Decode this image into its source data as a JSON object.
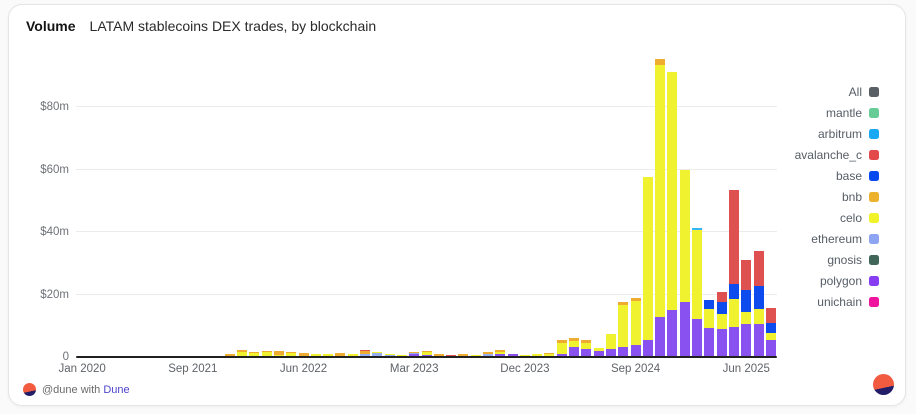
{
  "header": {
    "title": "Volume",
    "subtitle": "LATAM stablecoins DEX trades, by blockchain"
  },
  "footer": {
    "attribution_prefix": "@dune with",
    "brand": "Dune"
  },
  "legend": {
    "position": "right",
    "items": [
      {
        "label": "All",
        "color": "#5a5f66"
      },
      {
        "label": "mantle",
        "color": "#67cb98"
      },
      {
        "label": "arbitrum",
        "color": "#19a8f1"
      },
      {
        "label": "avalanche_c",
        "color": "#e3494b"
      },
      {
        "label": "base",
        "color": "#0648f0"
      },
      {
        "label": "bnb",
        "color": "#ecb22d"
      },
      {
        "label": "celo",
        "color": "#f2f229"
      },
      {
        "label": "ethereum",
        "color": "#8ca4f1"
      },
      {
        "label": "gnosis",
        "color": "#40665a"
      },
      {
        "label": "polygon",
        "color": "#873ef2"
      },
      {
        "label": "unichain",
        "color": "#ee149e"
      }
    ]
  },
  "chart_data": {
    "type": "bar",
    "stacked": true,
    "title": "Volume — LATAM stablecoins DEX trades, by blockchain",
    "unit": "USD millions",
    "ylim": [
      0,
      96
    ],
    "grid": "horizontal-only",
    "legend_position": "right",
    "yticks": [
      {
        "label": "$80m",
        "value": 80
      },
      {
        "label": "$60m",
        "value": 60
      },
      {
        "label": "$40m",
        "value": 40
      },
      {
        "label": "$20m",
        "value": 20
      },
      {
        "label": "0",
        "value": 0
      }
    ],
    "total_slots": 57,
    "xticks": [
      {
        "label": "Jan 2020",
        "slot": 0
      },
      {
        "label": "Sep 2021",
        "slot": 9
      },
      {
        "label": "Jun 2022",
        "slot": 18
      },
      {
        "label": "Mar 2023",
        "slot": 27
      },
      {
        "label": "Dec 2023",
        "slot": 36
      },
      {
        "label": "Sep 2024",
        "slot": 45
      },
      {
        "label": "Jun 2025",
        "slot": 54
      }
    ],
    "stack_order": [
      "polygon",
      "gnosis",
      "ethereum",
      "celo",
      "bnb",
      "base",
      "avalanche_c",
      "arbitrum",
      "mantle",
      "unichain"
    ],
    "colors": {
      "polygon": "#8952f0",
      "gnosis": "#40665a",
      "ethereum": "#97aef3",
      "celo": "#f0f22f",
      "bnb": "#eeac30",
      "base": "#0d4bee",
      "avalanche_c": "#de5150",
      "arbitrum": "#36b6f3",
      "mantle": "#67cb98",
      "unichain": "#ee149e"
    },
    "bars": [
      {
        "slot": 12,
        "segments": {
          "bnb": 0.7
        }
      },
      {
        "slot": 13,
        "segments": {
          "celo": 1.4,
          "bnb": 0.6
        }
      },
      {
        "slot": 14,
        "segments": {
          "celo": 1.0,
          "bnb": 0.4
        }
      },
      {
        "slot": 15,
        "segments": {
          "celo": 1.3,
          "bnb": 0.3
        }
      },
      {
        "slot": 16,
        "segments": {
          "celo": 0.4,
          "bnb": 1.2
        }
      },
      {
        "slot": 17,
        "segments": {
          "celo": 0.9,
          "bnb": 0.4
        }
      },
      {
        "slot": 18,
        "segments": {
          "bnb": 1.0
        }
      },
      {
        "slot": 19,
        "segments": {
          "celo": 0.5
        }
      },
      {
        "slot": 20,
        "segments": {
          "celo": 0.7
        }
      },
      {
        "slot": 21,
        "segments": {
          "bnb": 0.9
        }
      },
      {
        "slot": 22,
        "segments": {
          "celo": 0.5
        }
      },
      {
        "slot": 23,
        "segments": {
          "ethereum": 0.8,
          "bnb": 0.9,
          "avalanche_c": 0.3
        }
      },
      {
        "slot": 24,
        "segments": {
          "ethereum": 1.0,
          "celo": 0.3
        }
      },
      {
        "slot": 25,
        "segments": {
          "ethereum": 0.4,
          "celo": 0.4
        }
      },
      {
        "slot": 26,
        "segments": {
          "celo": 0.4
        }
      },
      {
        "slot": 27,
        "segments": {
          "polygon": 0.5,
          "ethereum": 0.4,
          "bnb": 0.4
        }
      },
      {
        "slot": 28,
        "segments": {
          "polygon": 0.4,
          "celo": 0.8,
          "bnb": 0.4
        }
      },
      {
        "slot": 29,
        "segments": {
          "bnb": 0.5
        }
      },
      {
        "slot": 30,
        "segments": {
          "avalanche_c": 0.4
        }
      },
      {
        "slot": 31,
        "segments": {
          "bnb": 0.8
        }
      },
      {
        "slot": 32,
        "segments": {
          "celo": 0.4
        }
      },
      {
        "slot": 33,
        "segments": {
          "ethereum": 0.5,
          "bnb": 0.7
        }
      },
      {
        "slot": 34,
        "segments": {
          "polygon": 0.8,
          "celo": 0.6,
          "bnb": 0.5
        }
      },
      {
        "slot": 35,
        "segments": {
          "polygon": 0.8
        }
      },
      {
        "slot": 36,
        "segments": {
          "celo": 0.4
        }
      },
      {
        "slot": 37,
        "segments": {
          "celo": 0.5
        }
      },
      {
        "slot": 38,
        "segments": {
          "celo": 0.6,
          "bnb": 0.3
        }
      },
      {
        "slot": 39,
        "segments": {
          "polygon": 0.7,
          "celo": 3.6,
          "bnb": 1.0
        }
      },
      {
        "slot": 40,
        "segments": {
          "polygon": 2.9,
          "celo": 2.0,
          "bnb": 0.8
        }
      },
      {
        "slot": 41,
        "segments": {
          "polygon": 2.4,
          "celo": 1.9,
          "bnb": 0.9
        }
      },
      {
        "slot": 42,
        "segments": {
          "polygon": 1.7,
          "celo": 0.9
        }
      },
      {
        "slot": 43,
        "segments": {
          "polygon": 2.4,
          "celo": 4.6
        }
      },
      {
        "slot": 44,
        "segments": {
          "polygon": 2.8,
          "celo": 13.5,
          "bnb": 1.0
        }
      },
      {
        "slot": 45,
        "segments": {
          "polygon": 3.4,
          "celo": 14.1,
          "bnb": 1.0
        }
      },
      {
        "slot": 46,
        "segments": {
          "polygon": 5.0,
          "celo": 52.5
        }
      },
      {
        "slot": 47,
        "segments": {
          "polygon": 12.4,
          "celo": 81.0,
          "bnb": 1.8
        }
      },
      {
        "slot": 48,
        "segments": {
          "polygon": 14.7,
          "celo": 76.3
        }
      },
      {
        "slot": 49,
        "segments": {
          "polygon": 17.3,
          "celo": 42.2
        }
      },
      {
        "slot": 50,
        "segments": {
          "polygon": 11.8,
          "celo": 28.7,
          "arbitrum": 0.5
        }
      },
      {
        "slot": 51,
        "segments": {
          "polygon": 8.9,
          "celo": 6.1,
          "base": 2.9
        }
      },
      {
        "slot": 52,
        "segments": {
          "polygon": 8.6,
          "celo": 4.8,
          "base": 3.9,
          "avalanche_c": 3.2
        }
      },
      {
        "slot": 53,
        "segments": {
          "polygon": 9.4,
          "celo": 8.9,
          "base": 4.8,
          "avalanche_c": 30.2
        }
      },
      {
        "slot": 54,
        "segments": {
          "polygon": 10.3,
          "celo": 3.8,
          "base": 7.0,
          "avalanche_c": 9.8
        }
      },
      {
        "slot": 55,
        "segments": {
          "polygon": 10.2,
          "celo": 4.8,
          "base": 7.3,
          "avalanche_c": 11.5
        }
      },
      {
        "slot": 56,
        "segments": {
          "polygon": 5.1,
          "celo": 2.2,
          "base": 3.2,
          "avalanche_c": 4.8
        }
      }
    ]
  }
}
